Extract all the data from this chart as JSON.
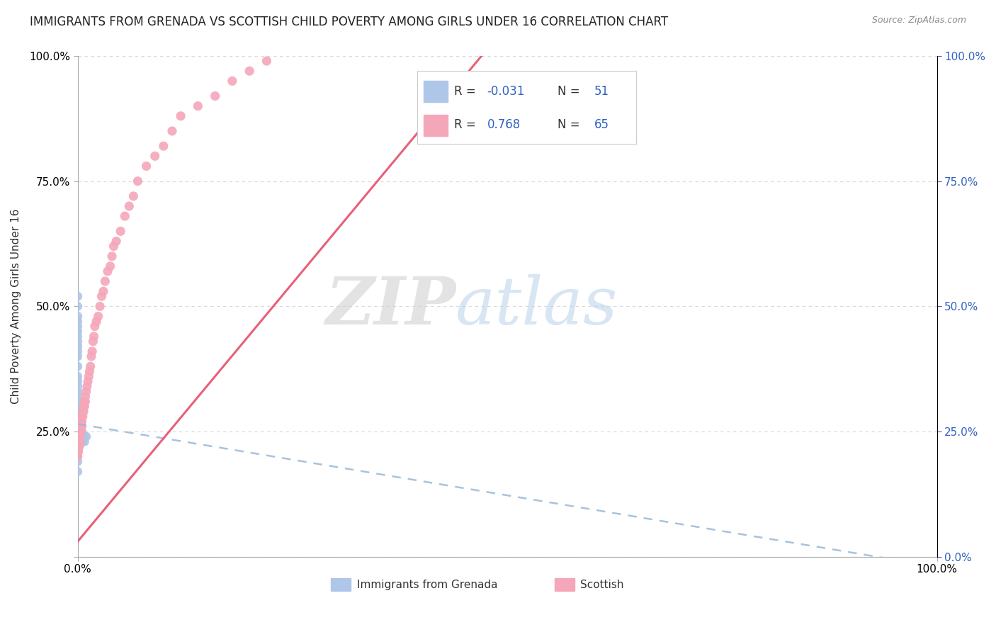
{
  "title": "IMMIGRANTS FROM GRENADA VS SCOTTISH CHILD POVERTY AMONG GIRLS UNDER 16 CORRELATION CHART",
  "source": "Source: ZipAtlas.com",
  "ylabel": "Child Poverty Among Girls Under 16",
  "xlim": [
    0.0,
    1.0
  ],
  "ylim": [
    0.0,
    1.0
  ],
  "ytick_positions": [
    0.0,
    0.25,
    0.5,
    0.75,
    1.0
  ],
  "ytick_labels_left": [
    "",
    "25.0%",
    "50.0%",
    "75.0%",
    "100.0%"
  ],
  "ytick_labels_right": [
    "0.0%",
    "25.0%",
    "50.0%",
    "75.0%",
    "100.0%"
  ],
  "xtick_positions": [
    0.0,
    1.0
  ],
  "xtick_labels": [
    "0.0%",
    "100.0%"
  ],
  "series": [
    {
      "name": "Immigrants from Grenada",
      "R": -0.031,
      "N": 51,
      "color": "#aec6e8",
      "line_color": "#99b8d8",
      "scatter_x": [
        0.0,
        0.0,
        0.0,
        0.0,
        0.0,
        0.0,
        0.0,
        0.0,
        0.0,
        0.0,
        0.0,
        0.0,
        0.0,
        0.0,
        0.0,
        0.0,
        0.0,
        0.0,
        0.0,
        0.0,
        0.0,
        0.0,
        0.0,
        0.0,
        0.0,
        0.0,
        0.0,
        0.0,
        0.0,
        0.0,
        0.0,
        0.0,
        0.0,
        0.0,
        0.0,
        0.0,
        0.0,
        0.0,
        0.0,
        0.0,
        0.0,
        0.002,
        0.002,
        0.003,
        0.004,
        0.005,
        0.005,
        0.006,
        0.007,
        0.008,
        0.01
      ],
      "scatter_y": [
        0.17,
        0.19,
        0.2,
        0.21,
        0.22,
        0.22,
        0.23,
        0.23,
        0.24,
        0.24,
        0.25,
        0.25,
        0.25,
        0.26,
        0.26,
        0.27,
        0.27,
        0.28,
        0.28,
        0.29,
        0.29,
        0.3,
        0.3,
        0.31,
        0.32,
        0.33,
        0.34,
        0.35,
        0.36,
        0.38,
        0.4,
        0.41,
        0.42,
        0.43,
        0.44,
        0.45,
        0.46,
        0.47,
        0.48,
        0.5,
        0.52,
        0.24,
        0.26,
        0.25,
        0.24,
        0.23,
        0.25,
        0.23,
        0.24,
        0.23,
        0.24
      ],
      "trend_x": [
        0.0,
        1.0
      ],
      "trend_y": [
        0.265,
        -0.02
      ]
    },
    {
      "name": "Scottish",
      "R": 0.768,
      "N": 65,
      "color": "#f4a7b9",
      "line_color": "#e8607a",
      "scatter_x": [
        0.0,
        0.0,
        0.0,
        0.0,
        0.001,
        0.001,
        0.001,
        0.001,
        0.002,
        0.002,
        0.002,
        0.003,
        0.003,
        0.003,
        0.004,
        0.004,
        0.004,
        0.005,
        0.005,
        0.005,
        0.006,
        0.006,
        0.007,
        0.007,
        0.008,
        0.008,
        0.009,
        0.009,
        0.01,
        0.011,
        0.012,
        0.013,
        0.014,
        0.015,
        0.016,
        0.017,
        0.018,
        0.019,
        0.02,
        0.022,
        0.024,
        0.026,
        0.028,
        0.03,
        0.032,
        0.035,
        0.038,
        0.04,
        0.042,
        0.045,
        0.05,
        0.055,
        0.06,
        0.065,
        0.07,
        0.08,
        0.09,
        0.1,
        0.11,
        0.12,
        0.14,
        0.16,
        0.18,
        0.2,
        0.22
      ],
      "scatter_y": [
        0.2,
        0.21,
        0.2,
        0.22,
        0.21,
        0.23,
        0.22,
        0.24,
        0.23,
        0.22,
        0.24,
        0.23,
        0.25,
        0.24,
        0.26,
        0.25,
        0.27,
        0.26,
        0.28,
        0.27,
        0.29,
        0.28,
        0.3,
        0.29,
        0.31,
        0.3,
        0.32,
        0.31,
        0.33,
        0.34,
        0.35,
        0.36,
        0.37,
        0.38,
        0.4,
        0.41,
        0.43,
        0.44,
        0.46,
        0.47,
        0.48,
        0.5,
        0.52,
        0.53,
        0.55,
        0.57,
        0.58,
        0.6,
        0.62,
        0.63,
        0.65,
        0.68,
        0.7,
        0.72,
        0.75,
        0.78,
        0.8,
        0.82,
        0.85,
        0.88,
        0.9,
        0.92,
        0.95,
        0.97,
        0.99
      ],
      "trend_x": [
        0.0,
        0.47
      ],
      "trend_y": [
        0.03,
        1.0
      ]
    }
  ],
  "watermark_zip": "ZIP",
  "watermark_atlas": "atlas",
  "background_color": "#ffffff",
  "grid_color": "#d8d8d8",
  "title_fontsize": 12,
  "axis_label_fontsize": 11,
  "tick_fontsize": 11,
  "legend_fontsize": 13,
  "r_color": "#3060c0",
  "n_color": "#3060c0",
  "source_color": "#888888"
}
